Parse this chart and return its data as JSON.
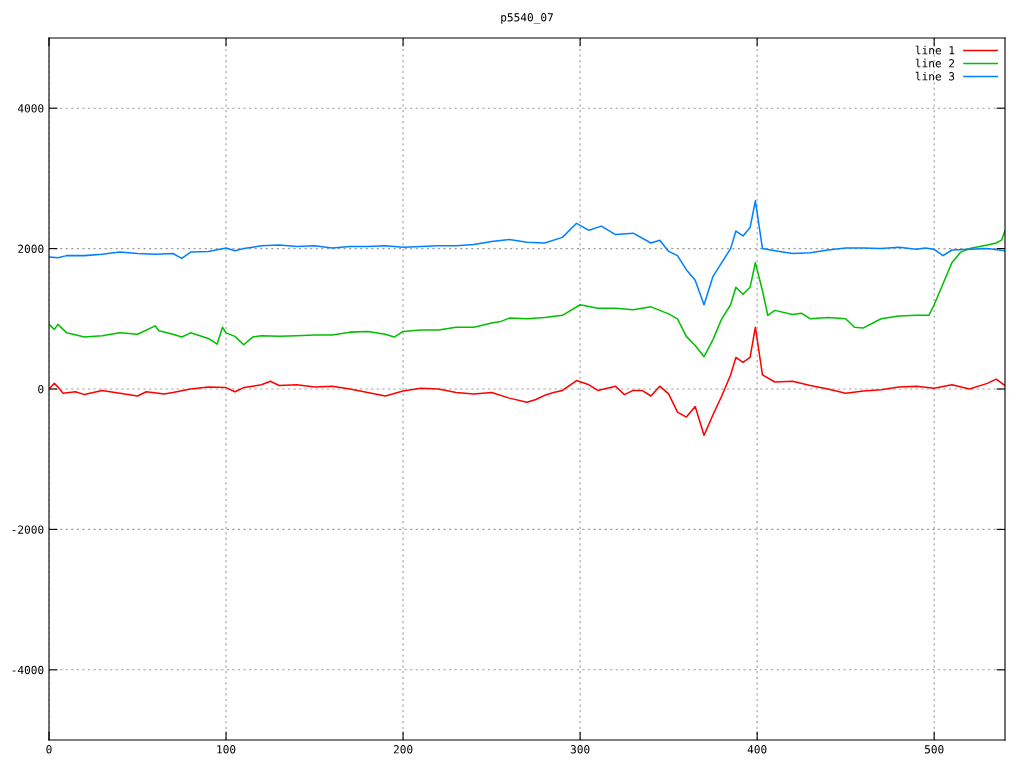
{
  "chart_data": {
    "type": "line",
    "title": "p5540_07",
    "xlim": [
      0,
      540
    ],
    "ylim": [
      -5000,
      5000
    ],
    "xticks": [
      0,
      100,
      200,
      300,
      400,
      500
    ],
    "yticks": [
      -4000,
      -2000,
      0,
      2000,
      4000
    ],
    "grid": true,
    "legend": "top right",
    "line_style": "solid",
    "marker": "none",
    "series": [
      {
        "name": "line 1",
        "color": "#ff0000",
        "x": [
          0,
          3,
          5,
          8,
          15,
          20,
          30,
          40,
          50,
          55,
          65,
          70,
          80,
          90,
          100,
          105,
          110,
          120,
          125,
          130,
          140,
          150,
          160,
          170,
          180,
          190,
          200,
          210,
          220,
          230,
          240,
          250,
          260,
          270,
          275,
          280,
          285,
          290,
          298,
          305,
          310,
          320,
          325,
          330,
          335,
          340,
          345,
          350,
          355,
          360,
          365,
          370,
          375,
          380,
          385,
          388,
          392,
          396,
          399,
          403,
          410,
          420,
          430,
          440,
          450,
          460,
          470,
          480,
          490,
          500,
          510,
          520,
          530,
          535,
          540
        ],
        "values": [
          0,
          80,
          30,
          -60,
          -40,
          -80,
          -20,
          -60,
          -100,
          -40,
          -70,
          -50,
          0,
          30,
          20,
          -40,
          20,
          60,
          110,
          50,
          60,
          30,
          40,
          0,
          -50,
          -100,
          -30,
          10,
          0,
          -50,
          -70,
          -50,
          -130,
          -190,
          -150,
          -90,
          -50,
          -20,
          120,
          60,
          -20,
          40,
          -80,
          -20,
          -20,
          -100,
          40,
          -70,
          -330,
          -400,
          -250,
          -660,
          -370,
          -100,
          200,
          450,
          380,
          450,
          880,
          200,
          100,
          110,
          50,
          0,
          -60,
          -30,
          -10,
          30,
          40,
          10,
          60,
          0,
          80,
          140,
          50
        ]
      },
      {
        "name": "line 2",
        "color": "#00c000",
        "x": [
          0,
          3,
          5,
          10,
          20,
          30,
          40,
          50,
          60,
          62,
          70,
          75,
          80,
          90,
          95,
          98,
          100,
          105,
          110,
          115,
          120,
          130,
          140,
          150,
          160,
          170,
          180,
          190,
          195,
          200,
          210,
          220,
          230,
          240,
          250,
          255,
          260,
          270,
          280,
          290,
          300,
          310,
          320,
          330,
          340,
          345,
          350,
          355,
          360,
          365,
          370,
          375,
          380,
          385,
          388,
          392,
          396,
          399,
          403,
          406,
          410,
          420,
          425,
          430,
          440,
          450,
          455,
          460,
          470,
          480,
          490,
          497,
          500,
          505,
          510,
          515,
          520,
          530,
          535,
          538,
          540
        ],
        "values": [
          920,
          850,
          920,
          800,
          740,
          760,
          800,
          780,
          900,
          830,
          780,
          740,
          800,
          720,
          640,
          880,
          800,
          750,
          630,
          740,
          760,
          750,
          760,
          770,
          770,
          810,
          820,
          780,
          740,
          820,
          840,
          840,
          880,
          880,
          940,
          960,
          1010,
          1000,
          1020,
          1050,
          1200,
          1150,
          1150,
          1130,
          1170,
          1120,
          1070,
          1000,
          750,
          620,
          460,
          700,
          1000,
          1200,
          1450,
          1350,
          1450,
          1800,
          1400,
          1050,
          1120,
          1060,
          1080,
          1000,
          1020,
          1000,
          880,
          870,
          1000,
          1040,
          1050,
          1050,
          1200,
          1500,
          1800,
          1950,
          2000,
          2050,
          2080,
          2120,
          2250
        ]
      },
      {
        "name": "line 3",
        "color": "#0080ff",
        "x": [
          0,
          5,
          10,
          20,
          30,
          40,
          50,
          60,
          70,
          75,
          80,
          90,
          100,
          105,
          110,
          120,
          130,
          140,
          150,
          160,
          170,
          180,
          190,
          200,
          210,
          220,
          230,
          240,
          250,
          260,
          270,
          280,
          290,
          298,
          305,
          312,
          320,
          330,
          340,
          345,
          350,
          355,
          360,
          365,
          370,
          375,
          380,
          385,
          388,
          392,
          396,
          399,
          403,
          410,
          420,
          430,
          440,
          450,
          460,
          470,
          480,
          490,
          495,
          500,
          505,
          510,
          520,
          530,
          540
        ],
        "values": [
          1880,
          1870,
          1900,
          1900,
          1920,
          1950,
          1930,
          1920,
          1930,
          1860,
          1950,
          1960,
          2010,
          1970,
          2000,
          2040,
          2050,
          2030,
          2040,
          2010,
          2030,
          2030,
          2040,
          2020,
          2030,
          2040,
          2040,
          2060,
          2100,
          2130,
          2090,
          2080,
          2160,
          2360,
          2260,
          2320,
          2200,
          2220,
          2080,
          2120,
          1960,
          1900,
          1700,
          1550,
          1200,
          1600,
          1800,
          2000,
          2250,
          2180,
          2300,
          2680,
          2000,
          1970,
          1930,
          1940,
          1980,
          2010,
          2010,
          2000,
          2020,
          1990,
          2010,
          1990,
          1900,
          1980,
          1990,
          2000,
          1970
        ]
      }
    ]
  }
}
